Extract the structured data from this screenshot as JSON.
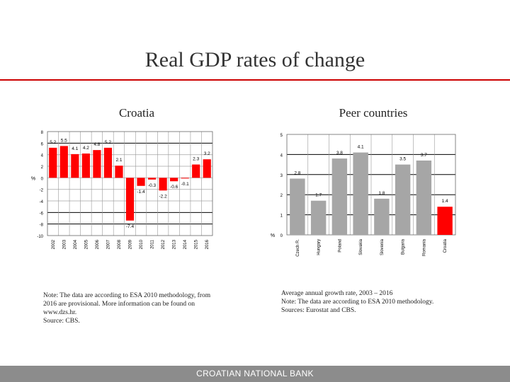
{
  "title": "Real GDP rates of change",
  "footer": "CROATIAN NATIONAL BANK",
  "chart_data": [
    {
      "type": "bar",
      "title": "Croatia",
      "ylabel": "%",
      "ylim": [
        -10,
        8
      ],
      "yticks": [
        -10,
        -8,
        -6,
        -4,
        -2,
        0,
        2,
        4,
        6,
        8
      ],
      "categories": [
        "2002",
        "2003",
        "2004",
        "2005",
        "2006",
        "2007",
        "2008",
        "2009",
        "2010",
        "2011",
        "2012",
        "2013",
        "2014",
        "2015",
        "2016"
      ],
      "values": [
        5.2,
        5.5,
        4.1,
        4.2,
        4.8,
        5.2,
        2.1,
        -7.4,
        -1.4,
        -0.3,
        -2.2,
        -0.6,
        -0.1,
        2.3,
        3.2
      ],
      "color": "#ff0000",
      "grid": true,
      "note": [
        "Note: The data are according to ESA 2010 methodology, from",
        "2016 are provisional. More information can be found on",
        "www.dzs.hr.",
        "Source: CBS."
      ]
    },
    {
      "type": "bar",
      "title": "Peer countries",
      "ylabel": "%",
      "ylim": [
        0,
        5
      ],
      "yticks": [
        0,
        1,
        2,
        3,
        4,
        5
      ],
      "categories": [
        "Czech R.",
        "Hungary",
        "Poland",
        "Slovakia",
        "Slovenia",
        "Bulgaria",
        "Romania",
        "Croatia"
      ],
      "values": [
        2.8,
        1.7,
        3.8,
        4.1,
        1.8,
        3.5,
        3.7,
        1.4
      ],
      "colors": [
        "#a6a6a6",
        "#a6a6a6",
        "#a6a6a6",
        "#a6a6a6",
        "#a6a6a6",
        "#a6a6a6",
        "#a6a6a6",
        "#ff0000"
      ],
      "grid": true,
      "note": [
        "Average annual growth rate, 2003 – 2016",
        "Note: The data are according to ESA 2010 methodology.",
        "Sources: Eurostat and CBS."
      ]
    }
  ]
}
